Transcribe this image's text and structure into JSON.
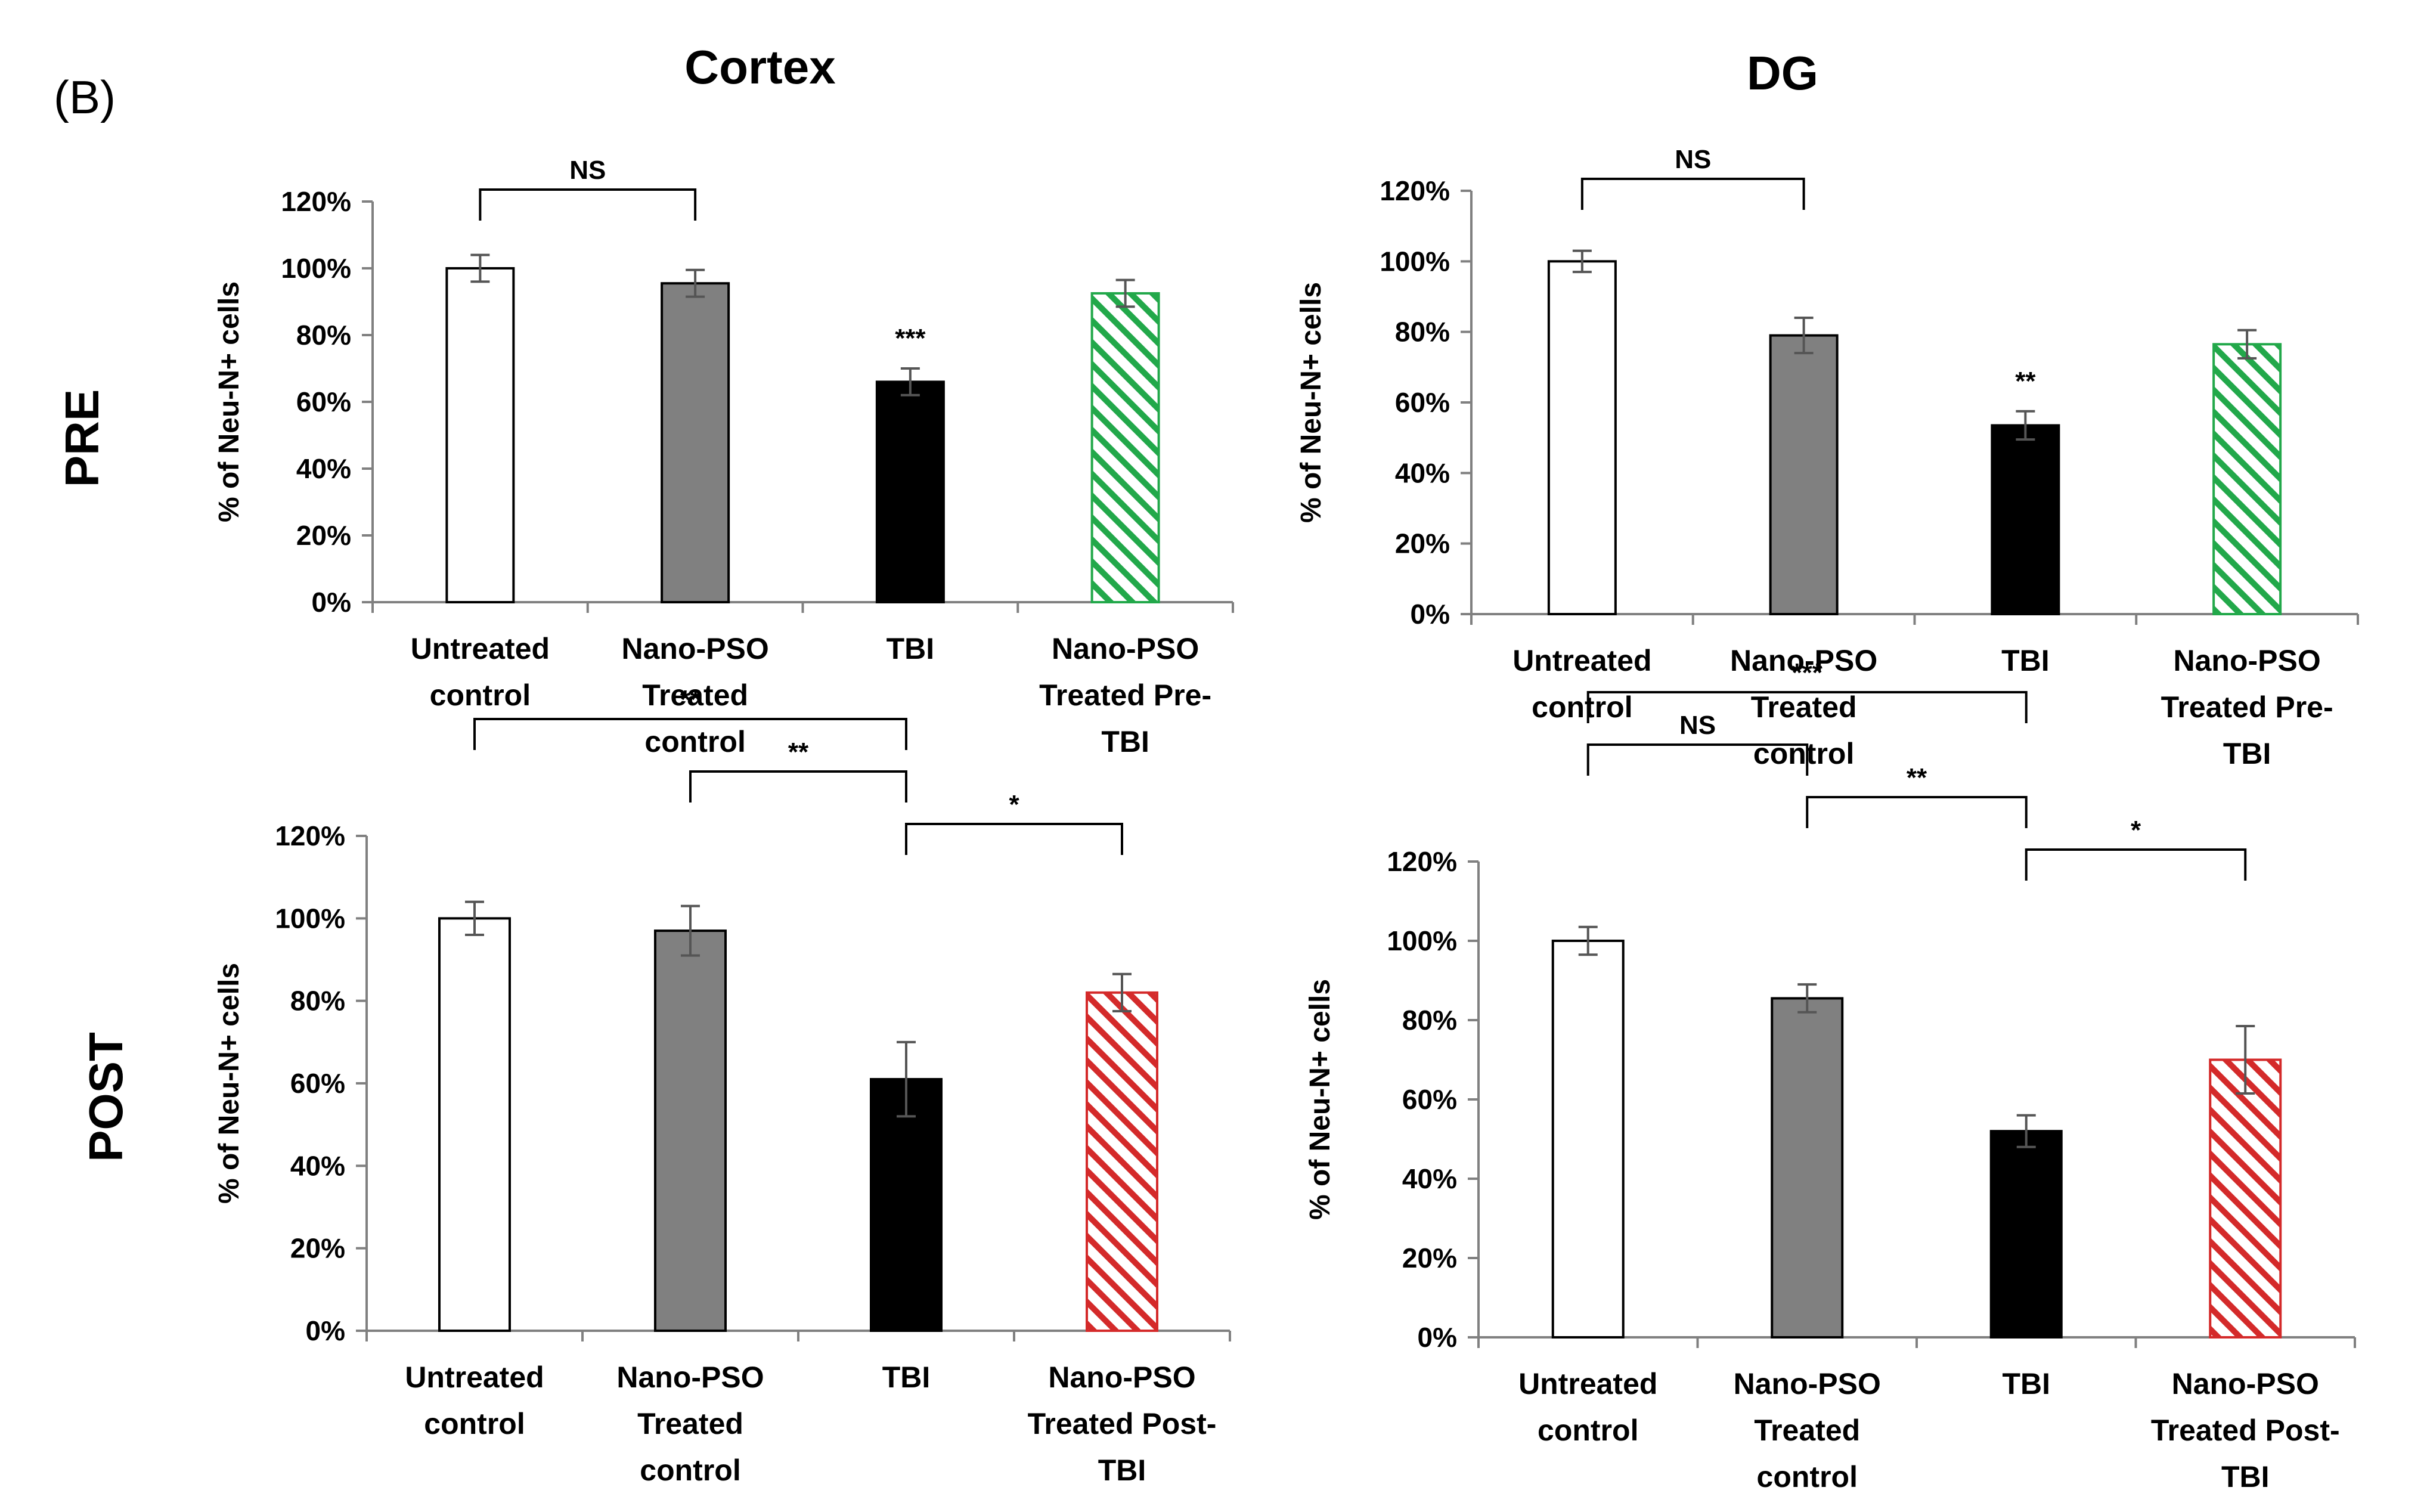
{
  "figure": {
    "panel_label": "(B)",
    "col_titles": [
      "Cortex",
      "DG"
    ],
    "row_titles": [
      "PRE",
      "POST"
    ]
  },
  "colors": {
    "untreated": "#ffffff",
    "nano_pso": "#808080",
    "tbi": "#000000",
    "pre_hatch": "#22a84a",
    "post_hatch": "#d42a2a",
    "axis": "#808080"
  },
  "chart_data": [
    {
      "id": "pre-cortex",
      "type": "bar",
      "ylabel": "% of Neu-N+ cells",
      "ylim": [
        0,
        120
      ],
      "ytick_labels": [
        "0%",
        "20%",
        "40%",
        "60%",
        "80%",
        "100%",
        "120%"
      ],
      "categories": [
        [
          "Untreated",
          "control"
        ],
        [
          "Nano-PSO",
          "Treated",
          "control"
        ],
        [
          "TBI"
        ],
        [
          "Nano-PSO",
          "Treated Pre-",
          "TBI"
        ]
      ],
      "values": [
        100,
        95.5,
        66,
        92.5
      ],
      "errors": [
        4,
        4,
        4,
        4
      ],
      "fills": [
        "untreated",
        "nano_pso",
        "tbi",
        "pre_hatch"
      ],
      "bar_annotations": [
        null,
        null,
        "***",
        null
      ],
      "brackets": [
        {
          "from": 0,
          "to": 1,
          "level": 0,
          "label": "NS"
        }
      ]
    },
    {
      "id": "pre-dg",
      "type": "bar",
      "ylabel": "% of Neu-N+ cells",
      "ylim": [
        0,
        120
      ],
      "ytick_labels": [
        "0%",
        "20%",
        "40%",
        "60%",
        "80%",
        "100%",
        "120%"
      ],
      "categories": [
        [
          "Untreated",
          "control"
        ],
        [
          "Nano-PSO",
          "Treated",
          "control"
        ],
        [
          "TBI"
        ],
        [
          "Nano-PSO",
          "Treated Pre-",
          "TBI"
        ]
      ],
      "values": [
        100,
        79,
        53.5,
        76.5
      ],
      "errors": [
        3,
        5,
        4,
        4
      ],
      "fills": [
        "untreated",
        "nano_pso",
        "tbi",
        "pre_hatch"
      ],
      "bar_annotations": [
        null,
        null,
        "**",
        null
      ],
      "brackets": [
        {
          "from": 0,
          "to": 1,
          "level": 0,
          "label": "NS"
        }
      ]
    },
    {
      "id": "post-cortex",
      "type": "bar",
      "ylabel": "% of Neu-N+ cells",
      "ylim": [
        0,
        120
      ],
      "ytick_labels": [
        "0%",
        "20%",
        "40%",
        "60%",
        "80%",
        "100%",
        "120%"
      ],
      "categories": [
        [
          "Untreated",
          "control"
        ],
        [
          "Nano-PSO",
          "Treated",
          "control"
        ],
        [
          "TBI"
        ],
        [
          "Nano-PSO",
          "Treated Post-",
          "TBI"
        ]
      ],
      "values": [
        100,
        97,
        61,
        82
      ],
      "errors": [
        4,
        6,
        9,
        4.5
      ],
      "fills": [
        "untreated",
        "nano_pso",
        "tbi",
        "post_hatch"
      ],
      "bar_annotations": [
        null,
        null,
        null,
        null
      ],
      "brackets": [
        {
          "from": 0,
          "to": 2,
          "level": 2,
          "label": "**"
        },
        {
          "from": 1,
          "to": 2,
          "level": 1,
          "label": "**"
        },
        {
          "from": 2,
          "to": 3,
          "level": 0,
          "label": "*"
        }
      ]
    },
    {
      "id": "post-dg",
      "type": "bar",
      "ylabel": "% of Neu-N+ cells",
      "ylim": [
        0,
        120
      ],
      "ytick_labels": [
        "0%",
        "20%",
        "40%",
        "60%",
        "80%",
        "100%",
        "120%"
      ],
      "categories": [
        [
          "Untreated",
          "control"
        ],
        [
          "Nano-PSO",
          "Treated",
          "control"
        ],
        [
          "TBI"
        ],
        [
          "Nano-PSO",
          "Treated Post-",
          "TBI"
        ]
      ],
      "values": [
        100,
        85.5,
        52,
        70
      ],
      "errors": [
        3.5,
        3.5,
        4,
        8.5
      ],
      "fills": [
        "untreated",
        "nano_pso",
        "tbi",
        "post_hatch"
      ],
      "bar_annotations": [
        null,
        null,
        null,
        null
      ],
      "brackets": [
        {
          "from": 0,
          "to": 2,
          "level": 3,
          "label": "***"
        },
        {
          "from": 0,
          "to": 1,
          "level": 2,
          "label": "NS"
        },
        {
          "from": 1,
          "to": 2,
          "level": 1,
          "label": "**"
        },
        {
          "from": 2,
          "to": 3,
          "level": 0,
          "label": "*"
        }
      ]
    }
  ]
}
